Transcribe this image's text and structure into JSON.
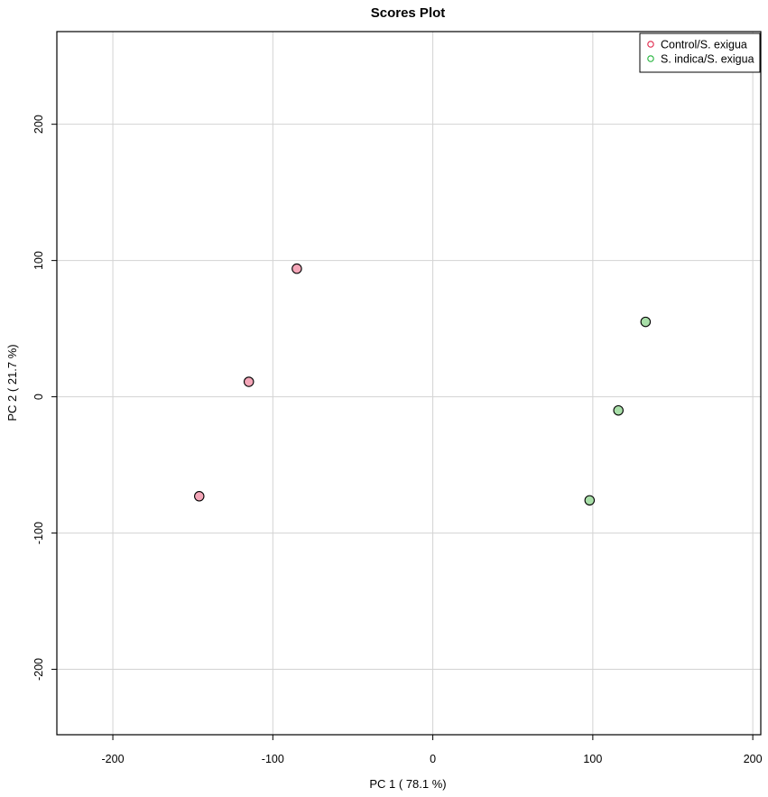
{
  "chart_data": {
    "type": "scatter",
    "title": "Scores Plot",
    "xlabel": "PC 1 ( 78.1 %)",
    "ylabel": "PC 2 ( 21.7 %)",
    "xlim": [
      -235,
      205
    ],
    "ylim": [
      -248,
      268
    ],
    "xticks": [
      -200,
      -100,
      0,
      100,
      200
    ],
    "yticks": [
      -200,
      -100,
      0,
      100,
      200
    ],
    "xtick_labels": [
      "-200",
      "-100",
      "0",
      "100",
      "200"
    ],
    "ytick_labels": [
      "-200",
      "-100",
      "0",
      "100",
      "200"
    ],
    "grid": true,
    "legend_position": "top-right",
    "series": [
      {
        "name": "Control/S. exigua",
        "fill": "#f4a6b8",
        "legend_color": "#e0264a",
        "points": [
          {
            "x": -85,
            "y": 94
          },
          {
            "x": -115,
            "y": 11
          },
          {
            "x": -146,
            "y": -73
          }
        ]
      },
      {
        "name": "S. indica/S. exigua",
        "fill": "#a8dea8",
        "legend_color": "#22b33a",
        "points": [
          {
            "x": 133,
            "y": 55
          },
          {
            "x": 116,
            "y": -10
          },
          {
            "x": 98,
            "y": -76
          }
        ]
      }
    ]
  }
}
